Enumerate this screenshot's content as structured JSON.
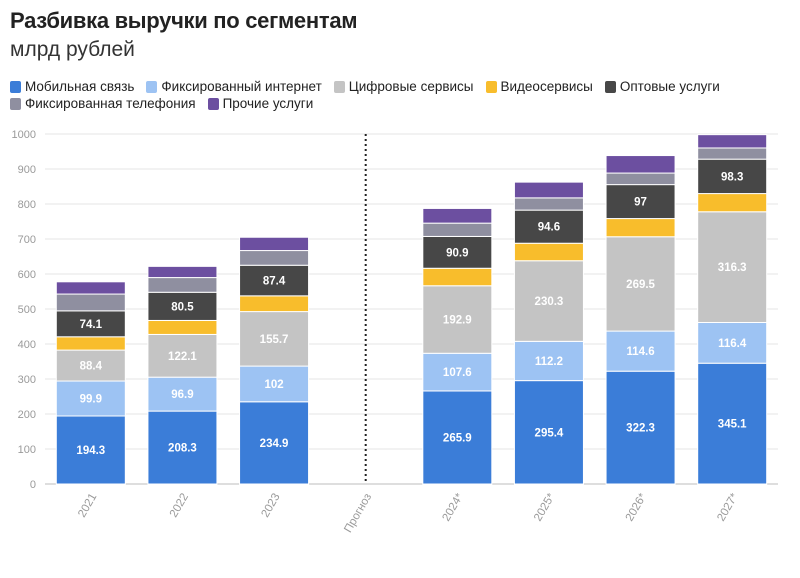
{
  "header": {
    "title": "Разбивка выручки по сегментам",
    "subtitle": "млрд рублей"
  },
  "chart_data": {
    "type": "bar",
    "stacked": true,
    "title": "Разбивка выручки по сегментам",
    "subtitle": "млрд рублей",
    "categories": [
      "2021",
      "2022",
      "2023",
      "Прогноз",
      "2024*",
      "2025*",
      "2026*",
      "2027*"
    ],
    "divider_category": "Прогноз",
    "ylim": [
      0,
      1000
    ],
    "yticks": [
      0,
      100,
      200,
      300,
      400,
      500,
      600,
      700,
      800,
      900,
      1000
    ],
    "grid": true,
    "legend_position": "top-left",
    "series": [
      {
        "name": "Мобильная связь",
        "color": "#3b7dd8",
        "values": [
          194.3,
          208.3,
          234.9,
          null,
          265.9,
          295.4,
          322.3,
          345.1
        ],
        "labels": [
          "194.3",
          "208.3",
          "234.9",
          "",
          "265.9",
          "295.4",
          "322.3",
          "345.1"
        ],
        "label_color": "#ffffff"
      },
      {
        "name": "Фиксированный интернет",
        "color": "#9dc3f3",
        "values": [
          99.9,
          96.9,
          102,
          null,
          107.6,
          112.2,
          114.6,
          116.4
        ],
        "labels": [
          "99.9",
          "96.9",
          "102",
          "",
          "107.6",
          "112.2",
          "114.6",
          "116.4"
        ],
        "label_color": "#ffffff"
      },
      {
        "name": "Цифровые сервисы",
        "color": "#c4c4c4",
        "values": [
          88.4,
          122.1,
          155.7,
          null,
          192.9,
          230.3,
          269.5,
          316.3
        ],
        "labels": [
          "88.4",
          "122.1",
          "155.7",
          "",
          "192.9",
          "230.3",
          "269.5",
          "316.3"
        ],
        "label_color": "#ffffff"
      },
      {
        "name": "Видеосервисы",
        "color": "#f8bd2c",
        "values": [
          38,
          40,
          45,
          null,
          50,
          50,
          52,
          52
        ],
        "labels": [
          "",
          "",
          "",
          "",
          "",
          "",
          "",
          ""
        ],
        "label_color": "#ffffff"
      },
      {
        "name": "Оптовые услуги",
        "color": "#474747",
        "values": [
          74.1,
          80.5,
          87.4,
          null,
          90.9,
          94.6,
          97,
          98.3
        ],
        "labels": [
          "74.1",
          "80.5",
          "87.4",
          "",
          "90.9",
          "94.6",
          "97",
          "98.3"
        ],
        "label_color": "#ffffff"
      },
      {
        "name": "Фиксированная телефония",
        "color": "#8f8fa0",
        "values": [
          48,
          42,
          42,
          null,
          38,
          35,
          33,
          32
        ],
        "labels": [
          "",
          "",
          "",
          "",
          "",
          "",
          "",
          ""
        ],
        "label_color": "#ffffff"
      },
      {
        "name": "Прочие услуги",
        "color": "#6c4fa0",
        "values": [
          35,
          32,
          38,
          null,
          42,
          45,
          50,
          38
        ],
        "labels": [
          "",
          "",
          "",
          "",
          "",
          "",
          "",
          ""
        ],
        "label_color": "#ffffff"
      }
    ]
  },
  "legend": {
    "rows": [
      [
        0,
        1,
        2,
        3,
        4
      ],
      [
        5,
        6
      ]
    ]
  }
}
